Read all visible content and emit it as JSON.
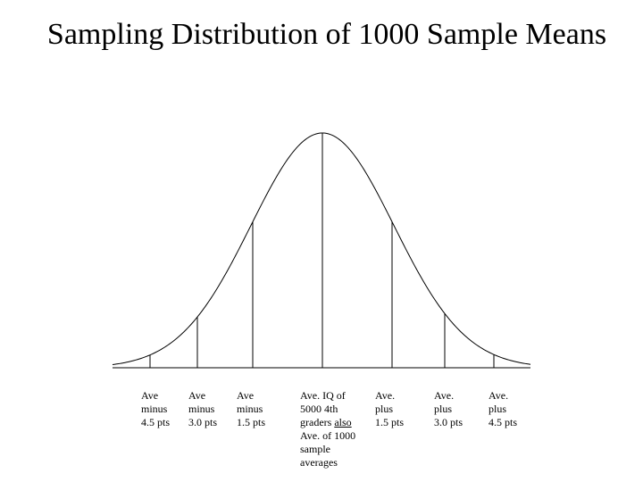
{
  "title": "Sampling Distribution of 1000 Sample Means",
  "chart_data": {
    "type": "line",
    "description_curve": "bell-shaped (normal) curve",
    "x_marks": [
      -4.5,
      -3.0,
      -1.5,
      0,
      1.5,
      3.0,
      4.5
    ],
    "labels": [
      {
        "offset": -4.5,
        "lines": [
          "Ave",
          "minus",
          "4.5 pts"
        ]
      },
      {
        "offset": -3.0,
        "lines": [
          "Ave",
          "minus",
          "3.0 pts"
        ]
      },
      {
        "offset": -1.5,
        "lines": [
          "Ave",
          "minus",
          "1.5 pts"
        ]
      },
      {
        "offset": 0,
        "lines": [
          "Ave. IQ of",
          "5000 4th",
          "graders also",
          "Ave. of 1000",
          "sample",
          "averages"
        ],
        "underline": "also"
      },
      {
        "offset": 1.5,
        "lines": [
          "Ave.",
          "plus",
          "1.5 pts"
        ]
      },
      {
        "offset": 3.0,
        "lines": [
          "Ave.",
          "plus",
          "3.0 pts"
        ]
      },
      {
        "offset": 4.5,
        "lines": [
          "Ave.",
          "plus",
          "4.5 pts"
        ]
      }
    ]
  }
}
